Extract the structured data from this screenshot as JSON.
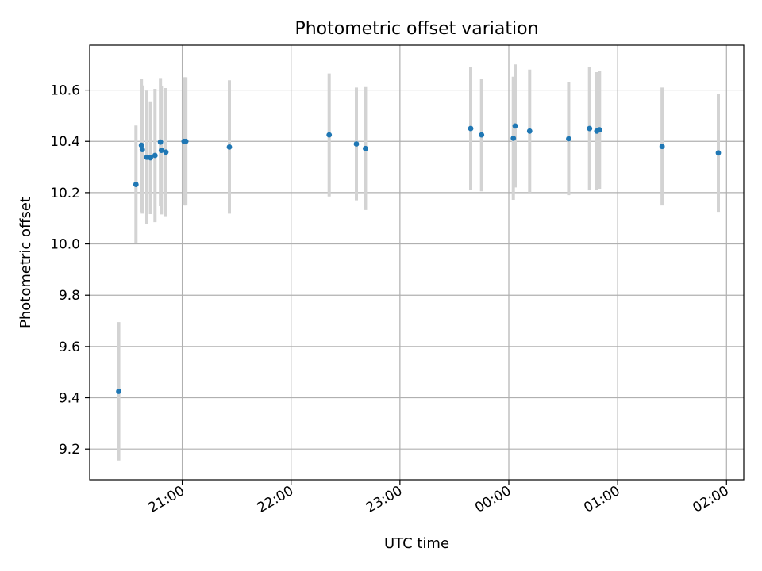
{
  "chart_data": {
    "type": "scatter",
    "title": "Photometric offset variation",
    "xlabel": "UTC time",
    "ylabel": "Photometric offset",
    "grid": true,
    "x_ticks": [
      "21:00",
      "22:00",
      "23:00",
      "00:00",
      "01:00",
      "02:00"
    ],
    "x_tick_values": [
      "20:59:30",
      "21:59:30",
      "22:59:30",
      "23:59:30",
      "00:59:30",
      "01:59:30"
    ],
    "xlim": [
      "20:08:30",
      "02:09:00"
    ],
    "y_ticks": [
      "9.2",
      "9.4",
      "9.6",
      "9.8",
      "10.0",
      "10.2",
      "10.4",
      "10.6"
    ],
    "y_tick_values": [
      9.2,
      9.4,
      9.6,
      9.8,
      10.0,
      10.2,
      10.4,
      10.6
    ],
    "ylim": [
      9.08,
      10.775
    ],
    "colors": {
      "points": "#1f77b4",
      "error_bars": "#d3d3d3"
    },
    "series": [
      {
        "points": [
          {
            "x": "20:24:30",
            "y": 9.425,
            "err": 0.27
          },
          {
            "x": "20:34:00",
            "y": 10.232,
            "err": 0.23
          },
          {
            "x": "20:37:00",
            "y": 10.385,
            "err": 0.26
          },
          {
            "x": "20:37:30",
            "y": 10.368,
            "err": 0.25
          },
          {
            "x": "20:40:00",
            "y": 10.338,
            "err": 0.26
          },
          {
            "x": "20:42:00",
            "y": 10.336,
            "err": 0.22
          },
          {
            "x": "20:44:30",
            "y": 10.345,
            "err": 0.26
          },
          {
            "x": "20:47:30",
            "y": 10.397,
            "err": 0.25
          },
          {
            "x": "20:48:00",
            "y": 10.365,
            "err": 0.25
          },
          {
            "x": "20:50:30",
            "y": 10.358,
            "err": 0.25
          },
          {
            "x": "21:00:30",
            "y": 10.4,
            "err": 0.25
          },
          {
            "x": "21:01:30",
            "y": 10.4,
            "err": 0.25
          },
          {
            "x": "21:25:30",
            "y": 10.378,
            "err": 0.26
          },
          {
            "x": "22:20:30",
            "y": 10.425,
            "err": 0.24
          },
          {
            "x": "22:35:30",
            "y": 10.39,
            "err": 0.22
          },
          {
            "x": "22:40:30",
            "y": 10.372,
            "err": 0.24
          },
          {
            "x": "23:38:30",
            "y": 10.45,
            "err": 0.24
          },
          {
            "x": "23:44:30",
            "y": 10.425,
            "err": 0.22
          },
          {
            "x": "00:02:00",
            "y": 10.412,
            "err": 0.24
          },
          {
            "x": "00:03:00",
            "y": 10.46,
            "err": 0.24
          },
          {
            "x": "00:11:00",
            "y": 10.44,
            "err": 0.24
          },
          {
            "x": "00:32:30",
            "y": 10.41,
            "err": 0.22
          },
          {
            "x": "00:44:00",
            "y": 10.45,
            "err": 0.24
          },
          {
            "x": "00:48:00",
            "y": 10.44,
            "err": 0.23
          },
          {
            "x": "00:49:30",
            "y": 10.445,
            "err": 0.23
          },
          {
            "x": "01:24:00",
            "y": 10.38,
            "err": 0.23
          },
          {
            "x": "01:55:00",
            "y": 10.355,
            "err": 0.23
          }
        ]
      }
    ]
  }
}
